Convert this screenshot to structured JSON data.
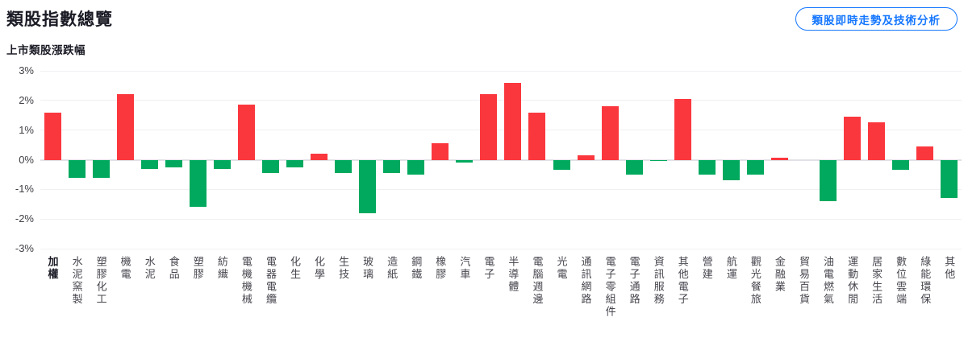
{
  "page": {
    "title": "類股指數總覽",
    "subtitle": "上市類股漲跌幅",
    "action_button_label": "類股即時走勢及技術分析"
  },
  "colors": {
    "up_red": "#fb373e",
    "down_green": "#00a95e",
    "accent_blue": "#1677ff",
    "grid": "#f0f0f3",
    "zero_line": "#e1e1e7",
    "tick_text": "#3f3f46",
    "title_text": "#1b1b26"
  },
  "chart_data": {
    "type": "bar",
    "title": "上市類股漲跌幅",
    "xlabel": "",
    "ylabel": "",
    "ylim": [
      -3,
      3
    ],
    "ytick_labels": [
      "3%",
      "2%",
      "1%",
      "0%",
      "-1%",
      "-2%",
      "-3%"
    ],
    "grid": true,
    "legend": false,
    "up_color_meaning": "rise",
    "down_color_meaning": "fall",
    "categories": [
      "加權",
      "水泥窯製",
      "塑膠化工",
      "機電",
      "水泥",
      "食品",
      "塑膠",
      "紡織",
      "電機機械",
      "電器電纜",
      "化生",
      "化學",
      "生技",
      "玻璃",
      "造紙",
      "鋼鐵",
      "橡膠",
      "汽車",
      "電子",
      "半導體",
      "電腦週邊",
      "光電",
      "通訊網路",
      "電子零組件",
      "電子通路",
      "資訊服務",
      "其他電子",
      "營建",
      "航運",
      "觀光餐旅",
      "金融業",
      "貿易百貨",
      "油電燃氣",
      "運動休閒",
      "居家生活",
      "數位雲端",
      "綠能環保",
      "其他"
    ],
    "values": [
      1.6,
      -0.6,
      -0.6,
      2.2,
      -0.3,
      -0.25,
      -1.6,
      -0.3,
      1.85,
      -0.45,
      -0.25,
      0.2,
      -0.45,
      -1.8,
      -0.45,
      -0.5,
      0.55,
      -0.1,
      2.2,
      2.6,
      1.6,
      -0.35,
      0.15,
      1.8,
      -0.5,
      -0.05,
      2.05,
      -0.5,
      -0.7,
      -0.5,
      0.07,
      0,
      -1.4,
      1.45,
      1.25,
      -0.35,
      0.45,
      -1.3
    ],
    "bold_categories": [
      "加權"
    ]
  }
}
